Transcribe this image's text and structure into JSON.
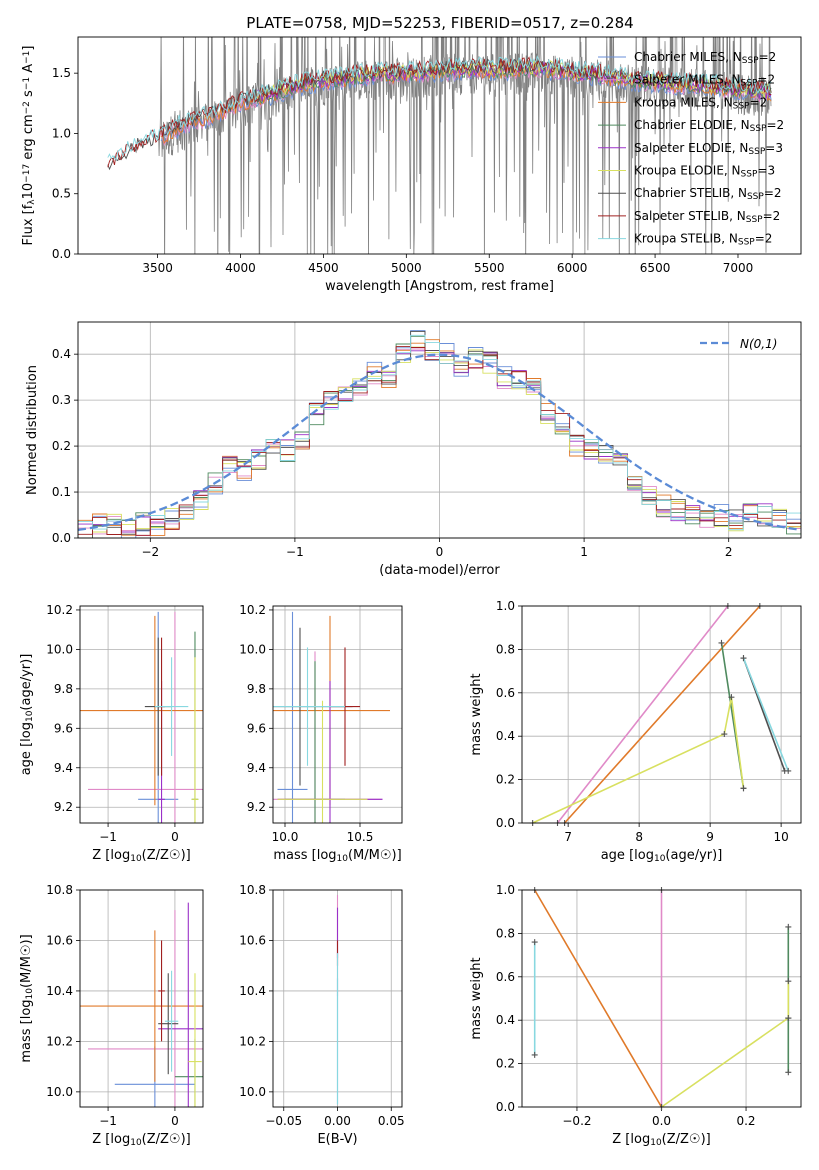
{
  "figure_title": "PLATE=0758, MJD=52253, FIBERID=0517, z=0.284",
  "colors": {
    "Chabrier MILES": "#6a8fd8",
    "Salpeter MILES": "#e08ac8",
    "Kroupa MILES": "#e07a2a",
    "Chabrier ELODIE": "#4f8a5f",
    "Salpeter ELODIE": "#9b30c8",
    "Kroupa ELODIE": "#d8e060",
    "Chabrier STELIB": "#505050",
    "Salpeter STELIB": "#a02020",
    "Kroupa STELIB": "#88d8e0",
    "data": "#808080",
    "gaussian": "#5b8bd6"
  },
  "chart_data": [
    {
      "id": "spectrum",
      "type": "line",
      "xlabel": "wavelength [Angstrom, rest frame]",
      "ylabel": "Flux [f_λ 10^-17 erg cm^-2 s^-1 A^-1]",
      "xlim": [
        3020,
        7380
      ],
      "ylim": [
        0,
        1.8
      ],
      "xticks": [
        3500,
        4000,
        4500,
        5000,
        5500,
        6000,
        6500,
        7000
      ],
      "yticks": [
        0.0,
        0.5,
        1.0,
        1.5
      ],
      "grid": false,
      "legend_position": "upper-right",
      "legend": [
        {
          "label": "Chabrier MILES, N",
          "sub": "SSP",
          "suffix": "=2",
          "series": "Chabrier MILES"
        },
        {
          "label": "Salpeter MILES, N",
          "sub": "SSP",
          "suffix": "=2",
          "series": "Salpeter MILES"
        },
        {
          "label": "Kroupa MILES, N",
          "sub": "SSP",
          "suffix": "=2",
          "series": "Kroupa MILES"
        },
        {
          "label": "Chabrier ELODIE, N",
          "sub": "SSP",
          "suffix": "=2",
          "series": "Chabrier ELODIE"
        },
        {
          "label": "Salpeter ELODIE, N",
          "sub": "SSP",
          "suffix": "=3",
          "series": "Salpeter ELODIE"
        },
        {
          "label": "Kroupa ELODIE, N",
          "sub": "SSP",
          "suffix": "=3",
          "series": "Kroupa ELODIE"
        },
        {
          "label": "Chabrier STELIB, N",
          "sub": "SSP",
          "suffix": "=2",
          "series": "Chabrier STELIB"
        },
        {
          "label": "Salpeter STELIB, N",
          "sub": "SSP",
          "suffix": "=2",
          "series": "Salpeter STELIB"
        },
        {
          "label": "Kroupa STELIB, N",
          "sub": "SSP",
          "suffix": "=2",
          "series": "Kroupa STELIB"
        }
      ],
      "continuum": {
        "x": [
          3200,
          3300,
          3400,
          3500,
          3600,
          3700,
          3800,
          3900,
          4000,
          4200,
          4400,
          4600,
          4800,
          5000,
          5200,
          5400,
          5600,
          5800,
          6000,
          6200,
          6400,
          6600,
          6800,
          7000,
          7200
        ],
        "y": [
          0.68,
          0.78,
          0.86,
          0.92,
          1.0,
          1.05,
          1.1,
          1.15,
          1.22,
          1.3,
          1.38,
          1.42,
          1.45,
          1.46,
          1.48,
          1.5,
          1.49,
          1.51,
          1.47,
          1.44,
          1.4,
          1.38,
          1.36,
          1.33,
          1.3
        ]
      },
      "model_start": {
        "Chabrier MILES": 3520,
        "Salpeter MILES": 3520,
        "Kroupa MILES": 3520,
        "Chabrier ELODIE": 4100,
        "Salpeter ELODIE": 4100,
        "Kroupa ELODIE": 4100,
        "Chabrier STELIB": 3200,
        "Salpeter STELIB": 3200,
        "Kroupa STELIB": 3200
      },
      "data_range": [
        3500,
        7200
      ]
    },
    {
      "id": "residuals",
      "type": "line",
      "xlabel": "(data-model)/error",
      "ylabel": "Normed distribution",
      "xlim": [
        -2.5,
        2.5
      ],
      "ylim": [
        0,
        0.47
      ],
      "xticks": [
        -2,
        -1,
        0,
        1,
        2
      ],
      "yticks": [
        0.0,
        0.1,
        0.2,
        0.3,
        0.4
      ],
      "grid": true,
      "legend_position": "upper-right",
      "legend_label": "N(0,1)",
      "bin_width": 0.1,
      "bins_start": -2.5,
      "histogram_base": [
        0.02,
        0.03,
        0.03,
        0.02,
        0.03,
        0.03,
        0.04,
        0.06,
        0.08,
        0.12,
        0.16,
        0.15,
        0.17,
        0.2,
        0.19,
        0.21,
        0.27,
        0.3,
        0.31,
        0.33,
        0.36,
        0.34,
        0.4,
        0.43,
        0.41,
        0.4,
        0.37,
        0.39,
        0.38,
        0.35,
        0.34,
        0.33,
        0.27,
        0.25,
        0.2,
        0.19,
        0.18,
        0.17,
        0.12,
        0.09,
        0.07,
        0.06,
        0.05,
        0.04,
        0.05,
        0.04,
        0.05,
        0.05,
        0.04,
        0.03
      ]
    },
    {
      "id": "age-vs-Z",
      "type": "scatter",
      "xlabel": "Z [log10(Z/Z☉)]",
      "ylabel": "age [log10(age/yr)]",
      "xlim": [
        -1.42,
        0.42
      ],
      "ylim": [
        9.12,
        10.22
      ],
      "xticks": [
        -1,
        0
      ],
      "yticks": [
        9.2,
        9.4,
        9.6,
        9.8,
        10.0,
        10.2
      ],
      "grid": true,
      "points": [
        {
          "series": "Chabrier MILES",
          "x": -0.25,
          "y": 9.24,
          "xerr": 0.3,
          "yerr": 0.95
        },
        {
          "series": "Salpeter MILES",
          "x": 0.0,
          "y": 9.29,
          "xerr": 1.3,
          "yerr": 0.9
        },
        {
          "series": "Kroupa MILES",
          "x": -0.3,
          "y": 9.69,
          "xerr": 1.25,
          "yerr": 0.48
        },
        {
          "series": "Chabrier ELODIE",
          "x": 0.3,
          "y": 9.24,
          "xerr": 0.05,
          "yerr": 0.85
        },
        {
          "series": "Salpeter ELODIE",
          "x": -0.2,
          "y": 9.24,
          "xerr": 0.05,
          "yerr": 0.6
        },
        {
          "series": "Kroupa ELODIE",
          "x": 0.3,
          "y": 9.24,
          "xerr": 0.05,
          "yerr": 0.72
        },
        {
          "series": "Chabrier STELIB",
          "x": -0.25,
          "y": 9.71,
          "xerr": 0.2,
          "yerr": 0.35
        },
        {
          "series": "Salpeter STELIB",
          "x": -0.2,
          "y": 9.71,
          "xerr": 0.05,
          "yerr": 0.35
        },
        {
          "series": "Kroupa STELIB",
          "x": -0.05,
          "y": 9.71,
          "xerr": 0.25,
          "yerr": 0.25
        }
      ]
    },
    {
      "id": "age-vs-mass",
      "type": "scatter",
      "xlabel": "mass [log10(M/M☉)]",
      "ylabel": "",
      "xlim": [
        9.92,
        10.78
      ],
      "ylim": [
        9.12,
        10.22
      ],
      "xticks": [
        10.0,
        10.5
      ],
      "yticks": [
        9.2,
        9.4,
        9.6,
        9.8,
        10.0,
        10.2
      ],
      "grid": true,
      "points": [
        {
          "series": "Chabrier MILES",
          "x": 10.05,
          "y": 9.29,
          "xerr": 0.1,
          "yerr": 0.9
        },
        {
          "series": "Salpeter MILES",
          "x": 10.2,
          "y": 9.24,
          "xerr": 0.45,
          "yerr": 0.75
        },
        {
          "series": "Kroupa MILES",
          "x": 10.3,
          "y": 9.69,
          "xerr": 0.4,
          "yerr": 0.48
        },
        {
          "series": "Chabrier ELODIE",
          "x": 10.2,
          "y": 9.24,
          "xerr": 0.2,
          "yerr": 0.7
        },
        {
          "series": "Salpeter ELODIE",
          "x": 10.3,
          "y": 9.24,
          "xerr": 0.35,
          "yerr": 0.6
        },
        {
          "series": "Kroupa ELODIE",
          "x": 10.25,
          "y": 9.24,
          "xerr": 0.3,
          "yerr": 0.5
        },
        {
          "series": "Chabrier STELIB",
          "x": 10.1,
          "y": 9.71,
          "xerr": 0.35,
          "yerr": 0.4
        },
        {
          "series": "Salpeter STELIB",
          "x": 10.4,
          "y": 9.71,
          "xerr": 0.1,
          "yerr": 0.3
        },
        {
          "series": "Kroupa STELIB",
          "x": 10.15,
          "y": 9.71,
          "xerr": 0.25,
          "yerr": 0.3
        }
      ]
    },
    {
      "id": "weight-vs-age",
      "type": "line",
      "xlabel": "age [log10(age/yr)]",
      "ylabel": "mass weight",
      "xlim": [
        6.35,
        10.28
      ],
      "ylim": [
        0,
        1.0
      ],
      "xticks": [
        7,
        8,
        9,
        10
      ],
      "yticks": [
        0.0,
        0.2,
        0.4,
        0.6,
        0.8,
        1.0
      ],
      "grid": true,
      "series": [
        {
          "name": "Salpeter MILES",
          "x": [
            6.85,
            9.25
          ],
          "y": [
            0.0,
            1.0
          ]
        },
        {
          "name": "Kroupa MILES",
          "x": [
            6.95,
            9.7
          ],
          "y": [
            0.0,
            1.0
          ]
        },
        {
          "name": "Chabrier ELODIE",
          "x": [
            9.16,
            9.47
          ],
          "y": [
            0.83,
            0.16
          ]
        },
        {
          "name": "Kroupa ELODIE",
          "x": [
            6.5,
            9.2,
            9.3,
            9.47
          ],
          "y": [
            0.0,
            0.41,
            0.58,
            0.16
          ]
        },
        {
          "name": "Chabrier STELIB",
          "x": [
            9.47,
            10.05
          ],
          "y": [
            0.76,
            0.24
          ]
        },
        {
          "name": "Kroupa STELIB",
          "x": [
            9.47,
            10.1
          ],
          "y": [
            0.76,
            0.24
          ]
        }
      ]
    },
    {
      "id": "mass-vs-Z",
      "type": "scatter",
      "xlabel": "Z [log10(Z/Z☉)]",
      "ylabel": "mass [log10(M/M☉)]",
      "xlim": [
        -1.42,
        0.42
      ],
      "ylim": [
        9.94,
        10.8
      ],
      "xticks": [
        -1,
        0
      ],
      "yticks": [
        10.0,
        10.2,
        10.4,
        10.6,
        10.8
      ],
      "grid": true,
      "points": [
        {
          "series": "Chabrier MILES",
          "x": -0.3,
          "y": 10.03,
          "xerr": 0.6,
          "yerr": 0.15
        },
        {
          "series": "Salpeter MILES",
          "x": 0.0,
          "y": 10.17,
          "xerr": 1.3,
          "yerr": 0.55
        },
        {
          "series": "Kroupa MILES",
          "x": -0.3,
          "y": 10.34,
          "xerr": 1.25,
          "yerr": 0.3
        },
        {
          "series": "Chabrier ELODIE",
          "x": 0.3,
          "y": 10.06,
          "xerr": 0.3,
          "yerr": 0.15
        },
        {
          "series": "Salpeter ELODIE",
          "x": 0.2,
          "y": 10.25,
          "xerr": 0.45,
          "yerr": 0.5
        },
        {
          "series": "Kroupa ELODIE",
          "x": 0.3,
          "y": 10.12,
          "xerr": 0.1,
          "yerr": 0.35
        },
        {
          "series": "Chabrier STELIB",
          "x": -0.1,
          "y": 10.27,
          "xerr": 0.15,
          "yerr": 0.2
        },
        {
          "series": "Salpeter STELIB",
          "x": -0.2,
          "y": 10.4,
          "xerr": 0.05,
          "yerr": 0.2
        },
        {
          "series": "Kroupa STELIB",
          "x": -0.05,
          "y": 10.28,
          "xerr": 0.1,
          "yerr": 0.2
        }
      ]
    },
    {
      "id": "mass-vs-EBV",
      "type": "scatter",
      "xlabel": "E(B-V)",
      "ylabel": "",
      "xlim": [
        -0.06,
        0.06
      ],
      "ylim": [
        9.94,
        10.8
      ],
      "xticks": [
        -0.05,
        0.0,
        0.05
      ],
      "yticks": [
        10.0,
        10.2,
        10.4,
        10.6,
        10.8
      ],
      "grid": true,
      "points": [
        {
          "series": "Salpeter MILES",
          "x": 0.0,
          "y": 10.58,
          "xerr": 0.0,
          "yerr": 0.2
        },
        {
          "series": "Salpeter ELODIE",
          "x": 0.0,
          "y": 10.63,
          "xerr": 0.0,
          "yerr": 0.1
        },
        {
          "series": "Salpeter STELIB",
          "x": 0.0,
          "y": 10.55,
          "xerr": 0.0,
          "yerr": 0.05
        },
        {
          "series": "Chabrier MILES",
          "x": 0.0,
          "y": 10.2,
          "xerr": 0.0,
          "yerr": 0.25
        },
        {
          "series": "Kroupa STELIB",
          "x": 0.0,
          "y": 10.25,
          "xerr": 0.0,
          "yerr": 0.3
        }
      ]
    },
    {
      "id": "weight-vs-Z",
      "type": "line",
      "xlabel": "Z [log10(Z/Z☉)]",
      "ylabel": "mass weight",
      "xlim": [
        -0.33,
        0.33
      ],
      "ylim": [
        0,
        1.0
      ],
      "xticks": [
        -0.2,
        0.0,
        0.2
      ],
      "yticks": [
        0.0,
        0.2,
        0.4,
        0.6,
        0.8,
        1.0
      ],
      "grid": true,
      "series": [
        {
          "name": "Salpeter MILES",
          "x": [
            0.0,
            0.0
          ],
          "y": [
            0.0,
            1.0
          ]
        },
        {
          "name": "Kroupa MILES",
          "x": [
            -0.3,
            0.0
          ],
          "y": [
            1.0,
            0.0
          ]
        },
        {
          "name": "Kroupa ELODIE",
          "x": [
            0.0,
            0.3
          ],
          "y": [
            0.0,
            0.41
          ]
        },
        {
          "name": "Chabrier ELODIE",
          "x": [
            0.3,
            0.3
          ],
          "y": [
            0.16,
            0.83
          ]
        },
        {
          "name": "Kroupa ELODIE 2",
          "x": [
            0.3,
            0.3
          ],
          "y": [
            0.41,
            0.58
          ]
        },
        {
          "name": "Kroupa STELIB",
          "x": [
            -0.3,
            -0.3
          ],
          "y": [
            0.24,
            0.76
          ]
        }
      ]
    }
  ]
}
